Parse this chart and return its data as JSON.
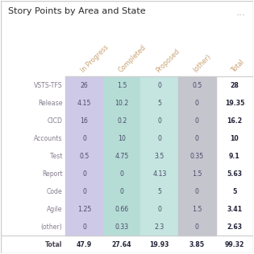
{
  "title": "Story Points by Area and State",
  "col_headers": [
    "In Progress",
    "Completed",
    "Proposed",
    "(other)",
    "Total"
  ],
  "row_labels": [
    "VSTS-TFS",
    "Release",
    "CICD",
    "Accounts",
    "Test",
    "Report",
    "Code",
    "Agile",
    "(other)",
    "Total"
  ],
  "values": [
    [
      26,
      1.5,
      0,
      0.5,
      28
    ],
    [
      4.15,
      10.2,
      5,
      0,
      19.35
    ],
    [
      16,
      0.2,
      0,
      0,
      16.2
    ],
    [
      0,
      10,
      0,
      0,
      10
    ],
    [
      0.5,
      4.75,
      3.5,
      0.35,
      9.1
    ],
    [
      0,
      0,
      4.13,
      1.5,
      5.63
    ],
    [
      0,
      0,
      5,
      0,
      5
    ],
    [
      1.25,
      0.66,
      0,
      1.5,
      3.41
    ],
    [
      0,
      0.33,
      2.3,
      0,
      2.63
    ],
    [
      47.9,
      27.64,
      19.93,
      3.85,
      99.32
    ]
  ],
  "col_colors": [
    "#cfc9e8",
    "#b5ddd6",
    "#c5e5e0",
    "#c5c5ce",
    "#ffffff"
  ],
  "header_color": "#c8a070",
  "row_label_color": "#857d8f",
  "total_label_color": "#4a4555",
  "cell_text_color": "#4a4a6a",
  "total_text_color": "#222238",
  "title_color": "#2a2a2a",
  "background_color": "#ffffff",
  "border_color": "#cccccc",
  "dots_color": "#aaaaaa"
}
